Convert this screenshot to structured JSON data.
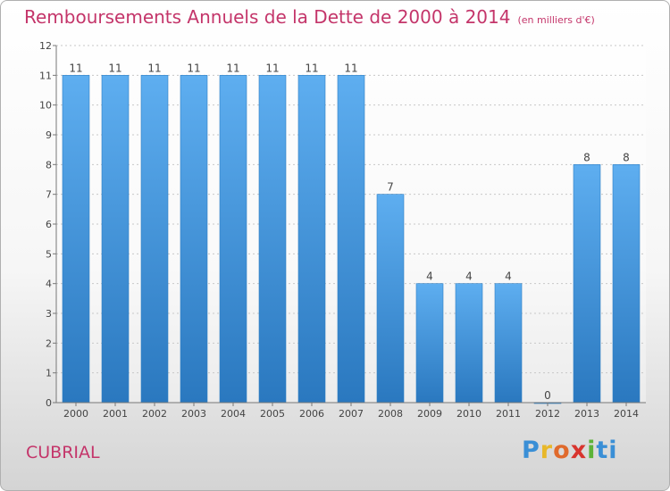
{
  "chart_data": {
    "type": "bar",
    "title": "Remboursements Annuels de la Dette de 2000 à 2014",
    "subtitle": "(en milliers d'€)",
    "categories": [
      "2000",
      "2001",
      "2002",
      "2003",
      "2004",
      "2005",
      "2006",
      "2007",
      "2008",
      "2009",
      "2010",
      "2011",
      "2012",
      "2013",
      "2014"
    ],
    "values": [
      11,
      11,
      11,
      11,
      11,
      11,
      11,
      11,
      7,
      4,
      4,
      4,
      0,
      8,
      8
    ],
    "ylim": [
      0,
      12
    ],
    "yticks": [
      0,
      1,
      2,
      3,
      4,
      5,
      6,
      7,
      8,
      9,
      10,
      11,
      12
    ],
    "grid": true,
    "bar_color": "#3b94db",
    "legend": "none"
  },
  "footer": {
    "commune": "CUBRIAL",
    "logo_letters": [
      "P",
      "r",
      "o",
      "x",
      "i",
      "ti"
    ]
  }
}
